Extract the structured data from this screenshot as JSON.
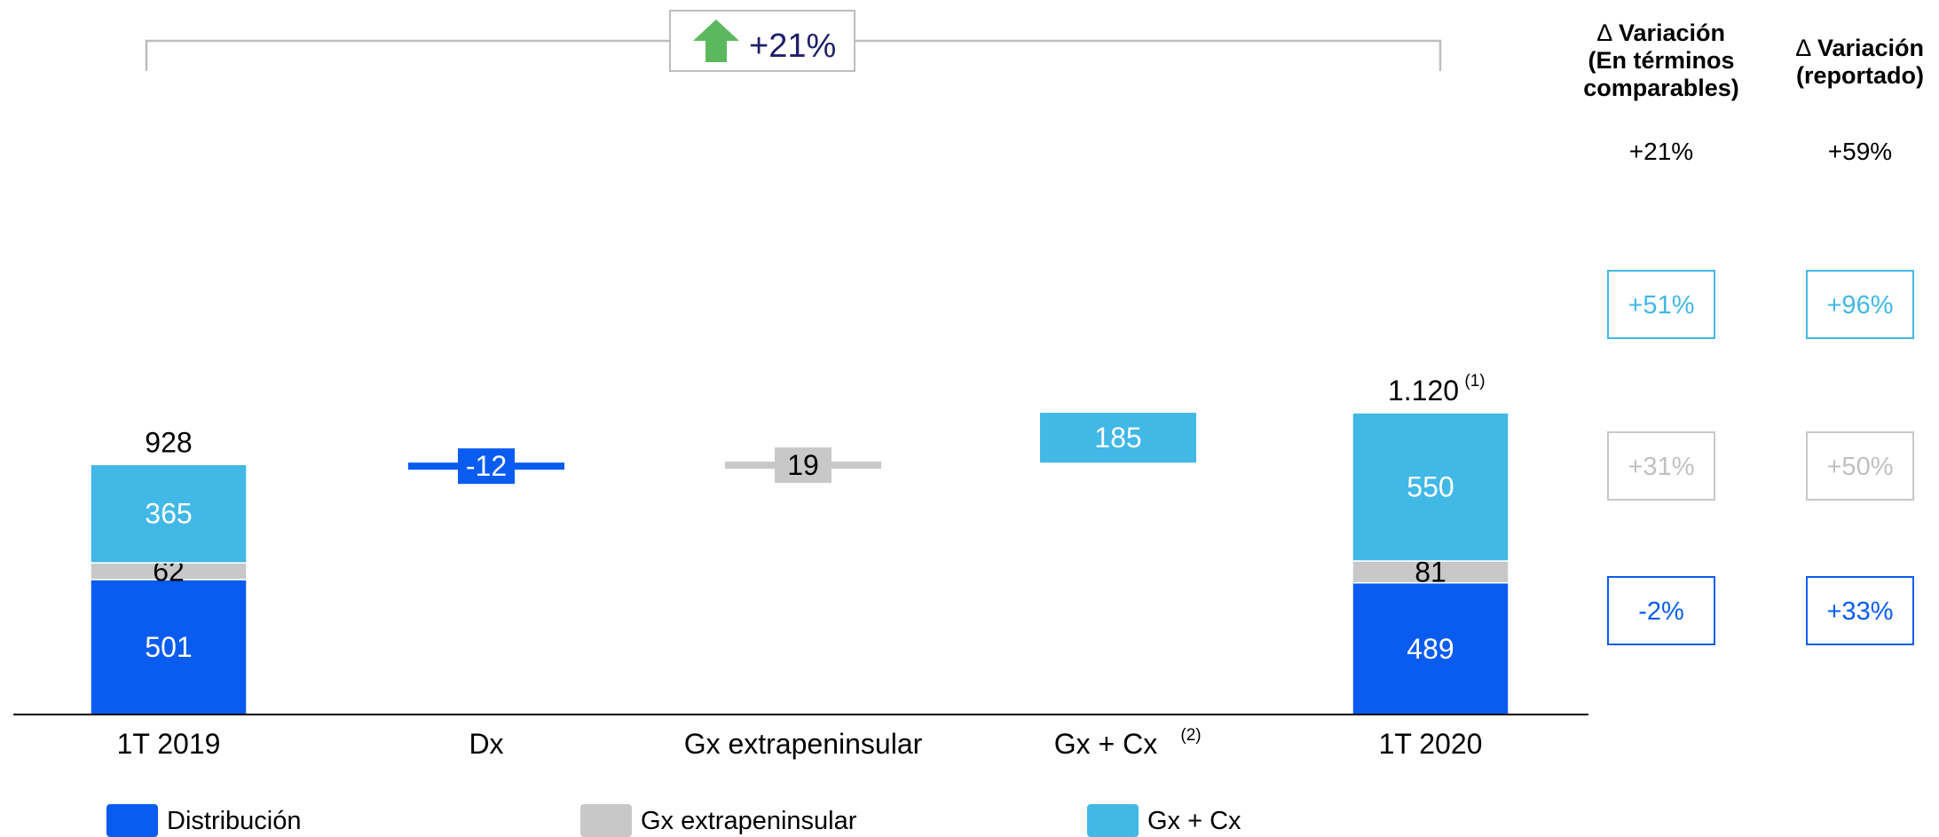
{
  "colors": {
    "distribucion": "#0A5CF0",
    "gx_extrapeninsular": "#C8C8C8",
    "gx_cx": "#41B8E6",
    "arrow": "#5CB85C",
    "headline_text": "#1F1F6B"
  },
  "headline": {
    "icon": "up-arrow-icon",
    "label": "+21%"
  },
  "chart_data": {
    "type": "bar",
    "subtype": "waterfall",
    "categories": [
      "1T 2019",
      "Dx",
      "Gx extrapeninsular",
      "Gx + Cx",
      "1T 2020"
    ],
    "category_superscripts": [
      "",
      "",
      "",
      "(2)",
      ""
    ],
    "legend": {
      "position": "bottom",
      "entries": [
        {
          "key": "distribucion",
          "label": "Distribución"
        },
        {
          "key": "gx_extrapeninsular",
          "label": "Gx extrapeninsular"
        },
        {
          "key": "gx_cx",
          "label": "Gx + Cx"
        }
      ]
    },
    "stacks": [
      {
        "category": "1T 2019",
        "total_label": "928",
        "total_superscript": "",
        "segments": [
          {
            "series": "distribucion",
            "value": 501,
            "label": "501"
          },
          {
            "series": "gx_extrapeninsular",
            "value": 62,
            "label": "62"
          },
          {
            "series": "gx_cx",
            "value": 365,
            "label": "365"
          }
        ]
      },
      {
        "category": "1T 2020",
        "total_label": "1.120",
        "total_superscript": "(1)",
        "segments": [
          {
            "series": "distribucion",
            "value": 489,
            "label": "489"
          },
          {
            "series": "gx_extrapeninsular",
            "value": 81,
            "label": "81"
          },
          {
            "series": "gx_cx",
            "value": 550,
            "label": "550"
          }
        ]
      }
    ],
    "deltas": [
      {
        "category": "Dx",
        "series": "distribucion",
        "value": -12,
        "label": "-12",
        "base": 928
      },
      {
        "category": "Gx extrapeninsular",
        "series": "gx_extrapeninsular",
        "value": 19,
        "label": "19",
        "base": 916
      },
      {
        "category": "Gx + Cx",
        "series": "gx_cx",
        "value": 185,
        "label": "185",
        "base": 935
      }
    ],
    "ylim": [
      0,
      1200
    ],
    "grid": false
  },
  "variation_table": {
    "columns": [
      {
        "delta_symbol": "∆",
        "title_lines": [
          "Variación",
          "(En términos",
          "comparables)"
        ],
        "total": "+21%",
        "rows": [
          {
            "series": "gx_cx",
            "label": "+51%"
          },
          {
            "series": "gx_extrapeninsular",
            "label": "+31%"
          },
          {
            "series": "distribucion",
            "label": "-2%"
          }
        ]
      },
      {
        "delta_symbol": "∆",
        "title_lines": [
          "Variación",
          "(reportado)"
        ],
        "total": "+59%",
        "rows": [
          {
            "series": "gx_cx",
            "label": "+96%"
          },
          {
            "series": "gx_extrapeninsular",
            "label": "+50%"
          },
          {
            "series": "distribucion",
            "label": "+33%"
          }
        ]
      }
    ]
  }
}
